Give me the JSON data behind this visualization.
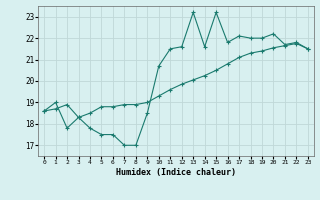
{
  "xlabel": "Humidex (Indice chaleur)",
  "bg_color": "#d8f0f0",
  "grid_color": "#c0d8d8",
  "line_color": "#1a7a6e",
  "xlim": [
    -0.5,
    23.5
  ],
  "ylim": [
    16.5,
    23.5
  ],
  "yticks": [
    17,
    18,
    19,
    20,
    21,
    22,
    23
  ],
  "xticks": [
    0,
    1,
    2,
    3,
    4,
    5,
    6,
    7,
    8,
    9,
    10,
    11,
    12,
    13,
    14,
    15,
    16,
    17,
    18,
    19,
    20,
    21,
    22,
    23
  ],
  "series1_x": [
    0,
    1,
    2,
    3,
    4,
    5,
    6,
    7,
    8,
    9,
    10,
    11,
    12,
    13,
    14,
    15,
    16,
    17,
    18,
    19,
    20,
    21,
    22,
    23
  ],
  "series1_y": [
    18.6,
    19.0,
    17.8,
    18.3,
    17.8,
    17.5,
    17.5,
    17.0,
    17.0,
    18.5,
    20.7,
    21.5,
    21.6,
    23.2,
    21.6,
    23.2,
    21.8,
    22.1,
    22.0,
    22.0,
    22.2,
    21.7,
    21.8,
    21.5
  ],
  "series2_x": [
    0,
    1,
    2,
    3,
    4,
    5,
    6,
    7,
    8,
    9,
    10,
    11,
    12,
    13,
    14,
    15,
    16,
    17,
    18,
    19,
    20,
    21,
    22,
    23
  ],
  "series2_y": [
    18.6,
    18.7,
    18.9,
    18.3,
    18.5,
    18.8,
    18.8,
    18.9,
    18.9,
    19.0,
    19.3,
    19.6,
    19.85,
    20.05,
    20.25,
    20.5,
    20.8,
    21.1,
    21.3,
    21.4,
    21.55,
    21.65,
    21.75,
    21.5
  ]
}
